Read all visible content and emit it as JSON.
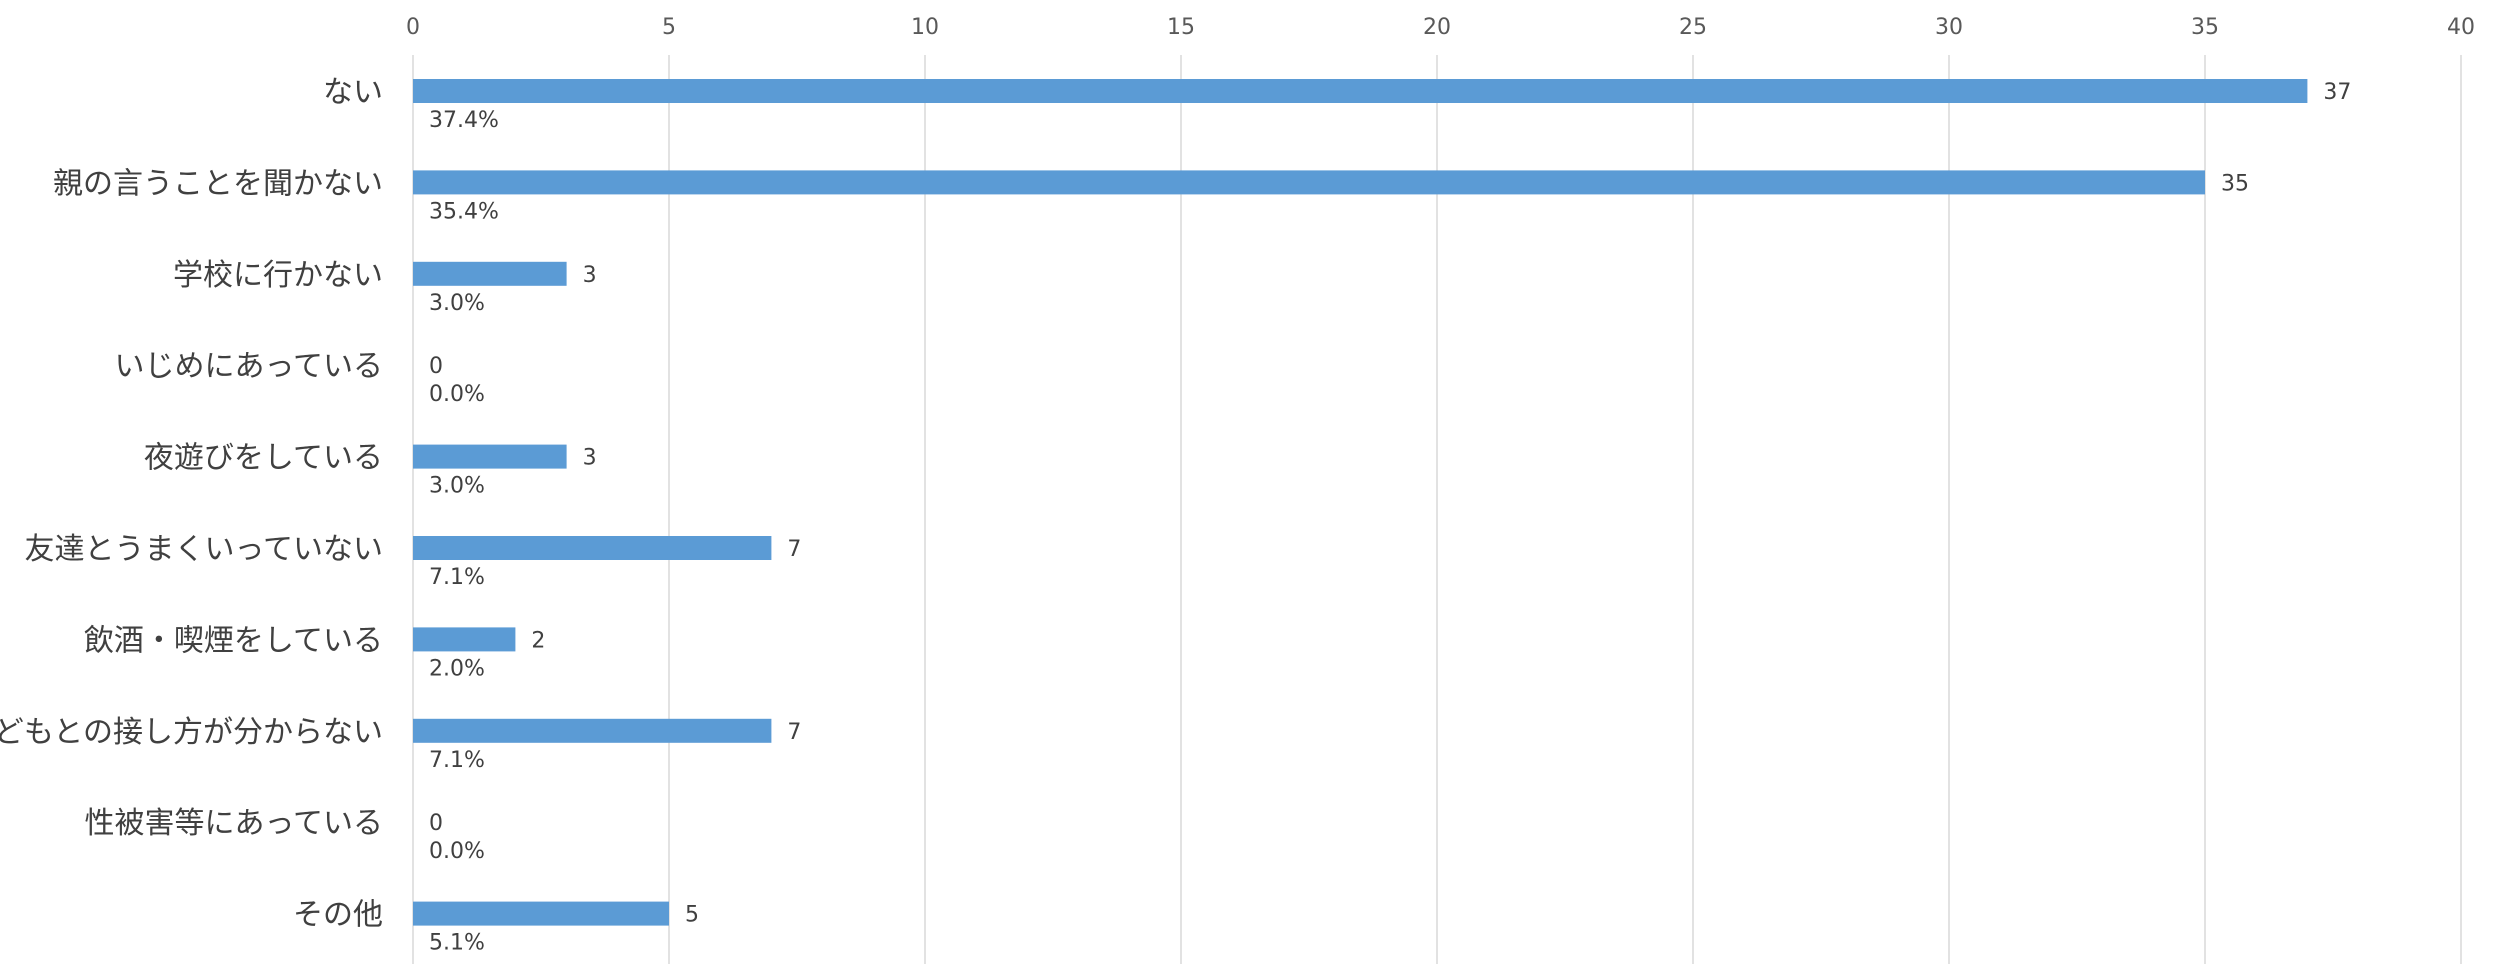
{
  "chart_data": {
    "type": "bar",
    "orientation": "horizontal",
    "title": "",
    "xlabel": "",
    "ylabel": "",
    "xlim": [
      0,
      40
    ],
    "x_ticks": [
      0,
      5,
      10,
      15,
      20,
      25,
      30,
      35,
      40
    ],
    "x_axis_position": "top",
    "grid": true,
    "legend": "none",
    "categories": [
      "ない",
      "親の言うことを聞かない",
      "学校に行かない",
      "いじめにあっている",
      "夜遊びをしている",
      "友達とうまくいっていない",
      "飲酒・喫煙をしている",
      "子どもとの接し方が分からない",
      "性被害等にあっている",
      "その他"
    ],
    "values": [
      37,
      35,
      3,
      0,
      3,
      7,
      2,
      7,
      0,
      5
    ],
    "percent_labels": [
      "37.4%",
      "35.4%",
      "3.0%",
      "0.0%",
      "3.0%",
      "7.1%",
      "2.0%",
      "7.1%",
      "0.0%",
      "5.1%"
    ],
    "colors": {
      "bar": "#5b9bd5",
      "grid": "#d9d9d9",
      "tick_text": "#595959",
      "category_text": "#404040",
      "value_text": "#404040"
    }
  }
}
